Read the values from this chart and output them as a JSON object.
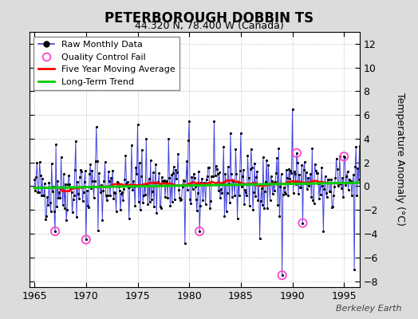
{
  "title": "PETERBOROUGH DOBBIN TS",
  "subtitle": "44.320 N, 78.400 W (Canada)",
  "ylabel": "Temperature Anomaly (°C)",
  "attribution": "Berkeley Earth",
  "xlim": [
    1964.5,
    1996.5
  ],
  "ylim": [
    -8.5,
    13.0
  ],
  "yticks": [
    -8,
    -6,
    -4,
    -2,
    0,
    2,
    4,
    6,
    8,
    10,
    12
  ],
  "xticks": [
    1965,
    1970,
    1975,
    1980,
    1985,
    1990,
    1995
  ],
  "background_color": "#dcdcdc",
  "plot_bg_color": "#ffffff",
  "raw_color": "#4444dd",
  "ma_color": "#ff0000",
  "trend_color": "#00cc00",
  "qc_color": "#ff44cc",
  "dot_color": "#000000",
  "legend_labels": [
    "Raw Monthly Data",
    "Quality Control Fail",
    "Five Year Moving Average",
    "Long-Term Trend"
  ],
  "seed": 42,
  "n_months": 384,
  "start_year": 1965.0
}
